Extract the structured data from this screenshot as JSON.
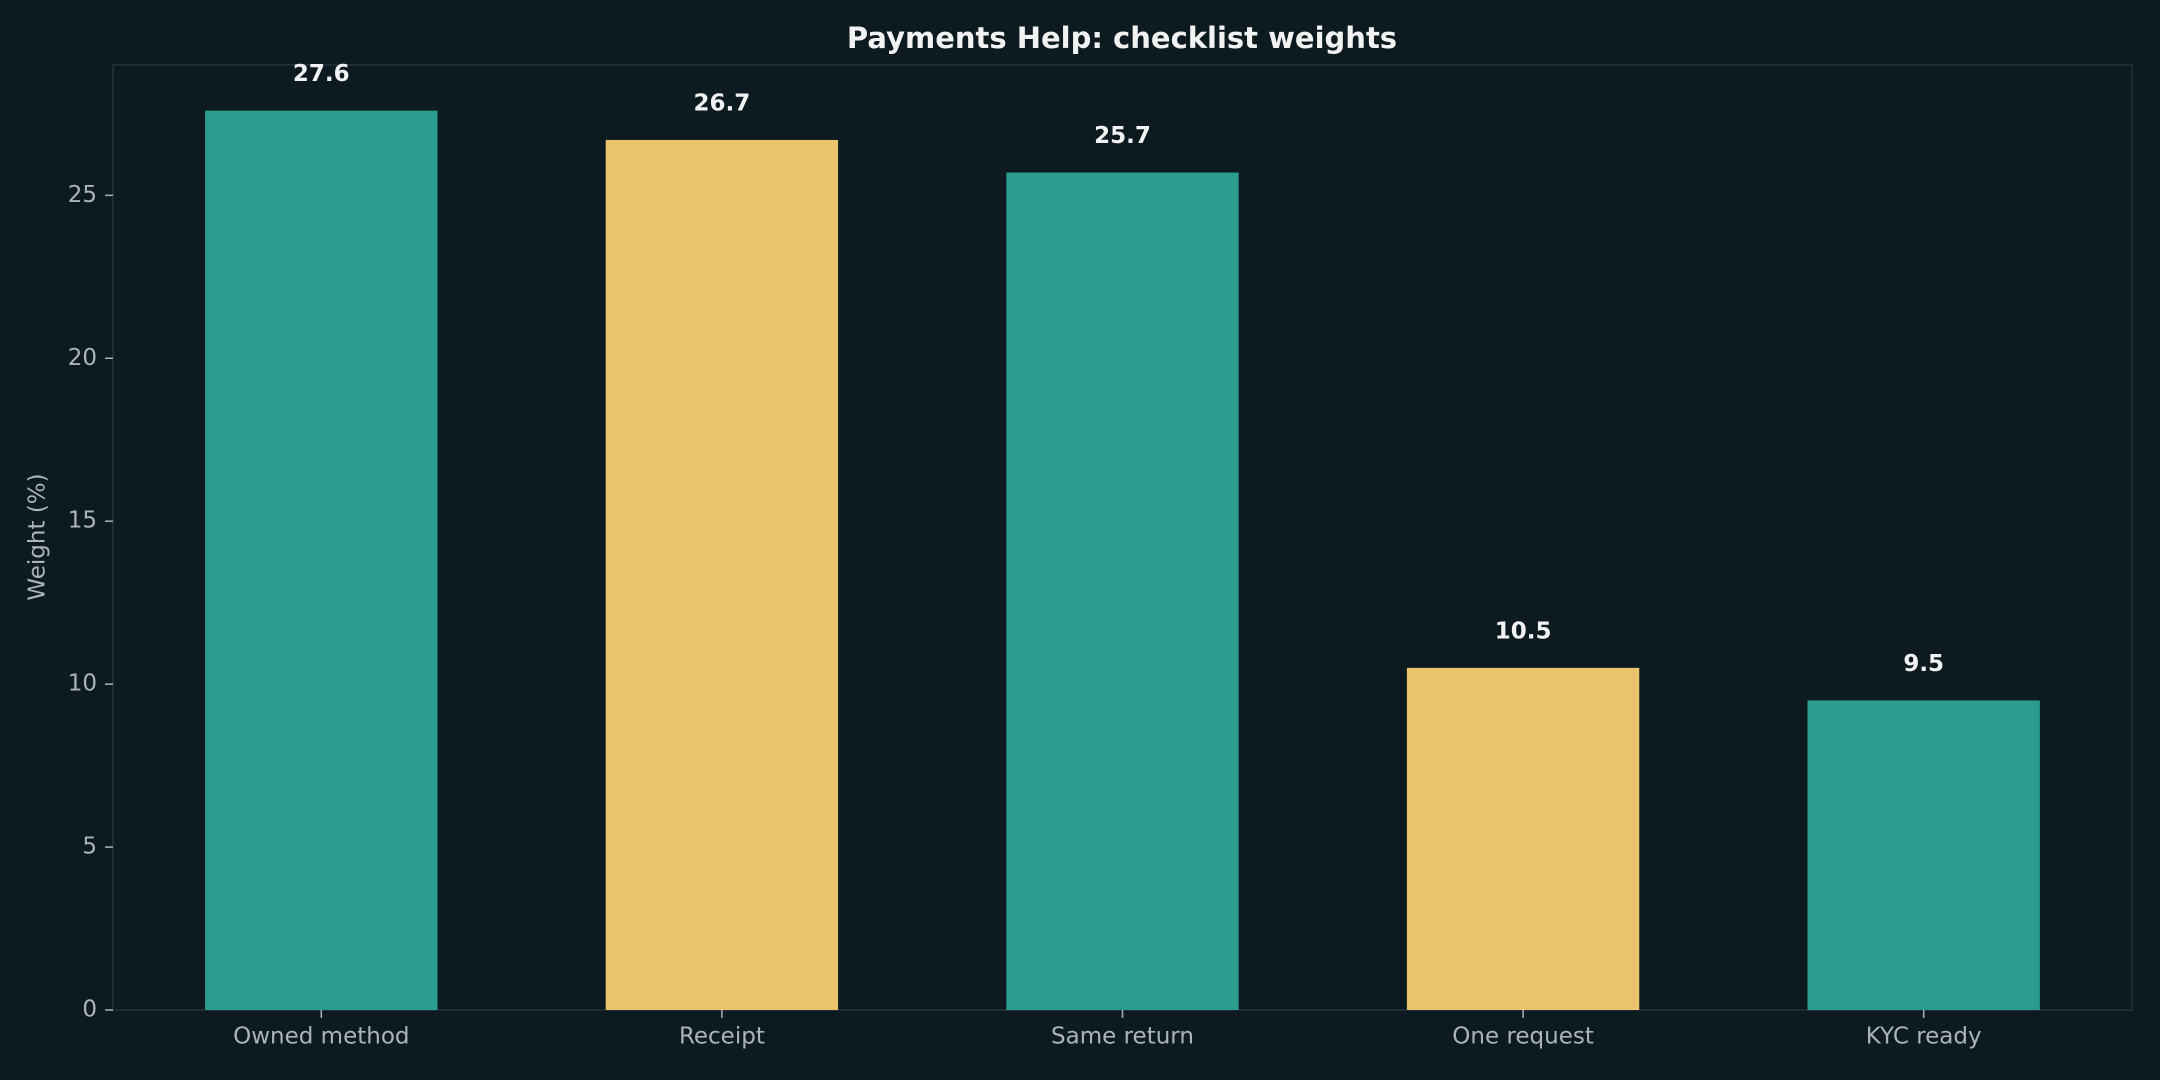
{
  "chart_data": {
    "type": "bar",
    "title": "Payments Help: checklist weights",
    "y_label": "Weight (%)",
    "categories": [
      "Owned method",
      "Receipt",
      "Same return",
      "One request",
      "KYC ready"
    ],
    "values": [
      27.6,
      26.7,
      25.7,
      10.5,
      9.5
    ],
    "colors": [
      "#2a9d8f",
      "#e9c46a",
      "#2a9d8f",
      "#e9c46a",
      "#2a9d8f"
    ],
    "ylim": [
      0,
      29
    ],
    "yticks": [
      0,
      5,
      10,
      15,
      20,
      25
    ],
    "grid": false
  }
}
